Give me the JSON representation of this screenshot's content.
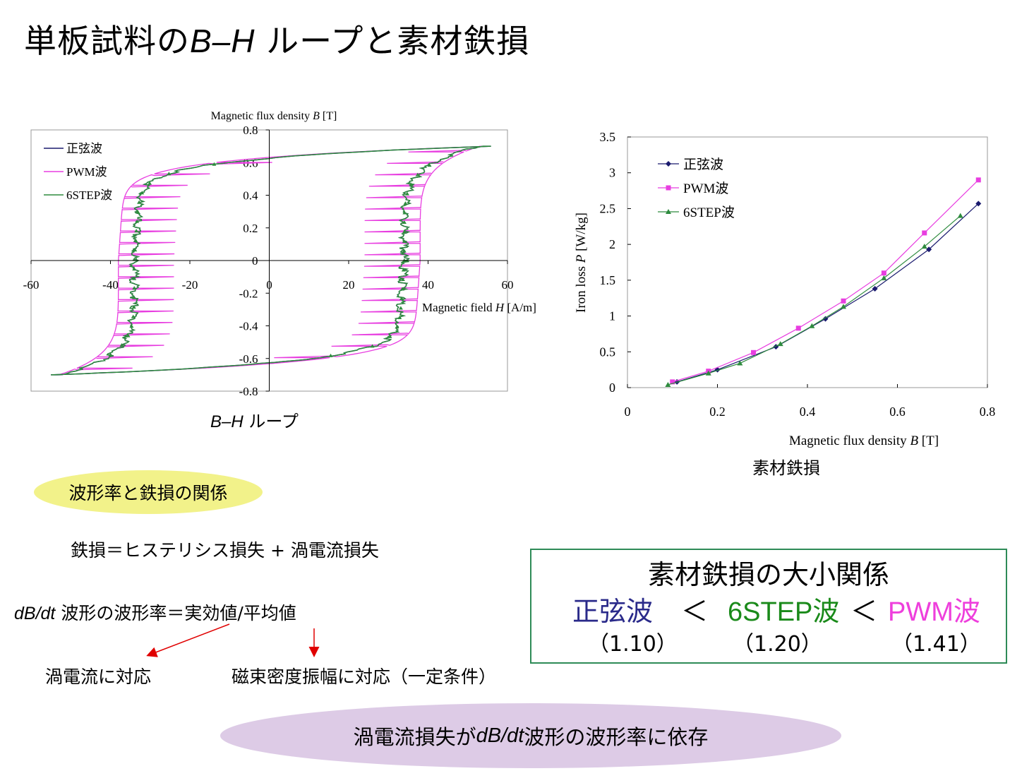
{
  "title": {
    "prefix": "単板試料の",
    "italic": "B–H",
    "suffix": " ループと素材鉄損"
  },
  "bh_caption": {
    "italic": "B–H",
    "suffix": " ループ"
  },
  "loss_caption": "素材鉄損",
  "colors": {
    "sine": "#1a1a6e",
    "pwm": "#e83ee0",
    "six_step": "#2e8b3e",
    "box_border": "#2e8b57",
    "pill_yellow": "#f2f28a",
    "pill_purple": "#ddcbe6",
    "arrow": "#e00000"
  },
  "relation_pill": "波形率と鉄損の関係",
  "equation_line": "鉄損＝ヒステリシス損失 + 渦電流損失",
  "formfactor_line": {
    "italic": "dB/dt",
    "rest": " 波形の波形率＝実効値/平均値"
  },
  "note_left": "渦電流に対応",
  "note_right": "磁束密度振幅に対応（一定条件）",
  "conclusion": {
    "prefix": "渦電流損失が",
    "italic": "dB/dt",
    "suffix": " 波形の波形率に依存"
  },
  "ranking_box": {
    "title": "素材鉄損の大小関係",
    "sine": "正弦波",
    "lt1": "＜",
    "six_step": "6STEP波",
    "lt2": "＜",
    "pwm": "PWM波",
    "sine_val": "（1.10）",
    "six_step_val": "（1.20）",
    "pwm_val": "（1.41）"
  },
  "chart_data": [
    {
      "type": "line",
      "name": "B-H loop",
      "ylabel_prefix": "Magnetic flux density ",
      "ylabel_var": "B",
      "ylabel_unit": " [T]",
      "xlabel_prefix": "Magnetic field ",
      "xlabel_var": "H",
      "xlabel_unit": "  [A/m]",
      "xlim": [
        -60,
        60
      ],
      "ylim": [
        -0.8,
        0.8
      ],
      "xticks": [
        "-60",
        "-40",
        "-20",
        "0",
        "20",
        "40",
        "60"
      ],
      "yticks": [
        "0.8",
        "0.6",
        "0.4",
        "0.2",
        "0",
        "-0.2",
        "-0.4",
        "-0.6",
        "-0.8"
      ],
      "legend_position": "top-left",
      "series": [
        {
          "name": "正弦波",
          "peak_H": 53,
          "peak_B": 0.7,
          "coercive_H": 34
        },
        {
          "name": "PWM波",
          "peak_H": 53,
          "peak_B": 0.7,
          "coercive_H": 38
        },
        {
          "name": "6STEP波",
          "peak_H": 53,
          "peak_B": 0.7,
          "coercive_H": 34
        }
      ]
    },
    {
      "type": "line",
      "name": "Iron loss",
      "xlabel_prefix": "Magnetic flux density ",
      "xlabel_var": "B",
      "xlabel_unit": "  [T]",
      "ylabel_prefix": "Iron loss ",
      "ylabel_var": "P",
      "ylabel_unit": "  [W/kg]",
      "xlim": [
        0,
        0.8
      ],
      "ylim": [
        0,
        3.5
      ],
      "xticks": [
        "0",
        "0.2",
        "0.4",
        "0.6",
        "0.8"
      ],
      "yticks": [
        "3.5",
        "3",
        "2.5",
        "2",
        "1.5",
        "1",
        "0.5",
        "0"
      ],
      "legend_position": "top-left",
      "series": [
        {
          "name": "正弦波",
          "x": [
            0.11,
            0.2,
            0.33,
            0.44,
            0.55,
            0.67,
            0.78
          ],
          "y": [
            0.08,
            0.25,
            0.57,
            0.96,
            1.38,
            1.93,
            2.57
          ]
        },
        {
          "name": "PWM波",
          "x": [
            0.1,
            0.18,
            0.28,
            0.38,
            0.48,
            0.57,
            0.66,
            0.78
          ],
          "y": [
            0.08,
            0.23,
            0.49,
            0.83,
            1.21,
            1.6,
            2.16,
            2.9
          ]
        },
        {
          "name": "6STEP波",
          "x": [
            0.09,
            0.18,
            0.25,
            0.34,
            0.41,
            0.48,
            0.57,
            0.66,
            0.74
          ],
          "y": [
            0.04,
            0.2,
            0.34,
            0.61,
            0.86,
            1.13,
            1.53,
            1.97,
            2.4
          ]
        }
      ]
    }
  ]
}
